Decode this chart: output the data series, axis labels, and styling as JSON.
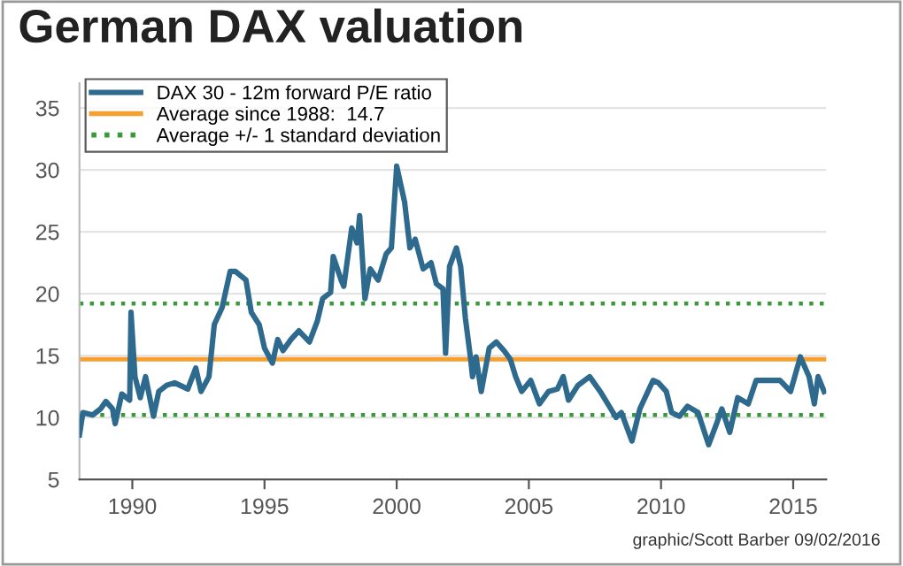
{
  "chart_data": {
    "type": "line",
    "title": "German DAX valuation",
    "x": [
      1988.0,
      1988.13,
      1988.5,
      1988.8,
      1989.0,
      1989.25,
      1989.35,
      1989.6,
      1989.9,
      1989.95,
      1990.1,
      1990.3,
      1990.5,
      1990.8,
      1991.0,
      1991.3,
      1991.6,
      1992.1,
      1992.4,
      1992.6,
      1992.9,
      1993.1,
      1993.4,
      1993.7,
      1993.9,
      1994.3,
      1994.5,
      1994.8,
      1995.0,
      1995.3,
      1995.5,
      1995.7,
      1996.0,
      1996.3,
      1996.7,
      1997.0,
      1997.2,
      1997.5,
      1997.6,
      1997.9,
      1998.0,
      1998.3,
      1998.5,
      1998.6,
      1998.8,
      1999.0,
      1999.3,
      1999.6,
      1999.8,
      2000.0,
      2000.3,
      2000.5,
      2000.7,
      2001.0,
      2001.3,
      2001.5,
      2001.75,
      2001.85,
      2002.0,
      2002.26,
      2002.42,
      2002.6,
      2002.8,
      2002.87,
      2003.0,
      2003.2,
      2003.5,
      2003.77,
      2004.06,
      2004.3,
      2004.5,
      2004.73,
      2005.07,
      2005.4,
      2005.74,
      2006.08,
      2006.3,
      2006.5,
      2006.86,
      2007.3,
      2007.7,
      2008.1,
      2008.3,
      2008.5,
      2008.9,
      2009.2,
      2009.7,
      2009.9,
      2010.2,
      2010.4,
      2010.7,
      2011.0,
      2011.4,
      2011.8,
      2012.1,
      2012.3,
      2012.6,
      2012.9,
      2013.3,
      2013.6,
      2014.0,
      2014.5,
      2014.9,
      2015.27,
      2015.6,
      2015.8,
      2015.94,
      2016.17
    ],
    "series": [
      {
        "name": "DAX 30 - 12m forward P/E ratio",
        "color": "#2e6a8e",
        "values": [
          8.6,
          10.4,
          10.2,
          10.7,
          11.3,
          10.7,
          9.5,
          11.9,
          11.4,
          18.5,
          13.3,
          11.6,
          13.3,
          10.1,
          12.1,
          12.6,
          12.8,
          12.3,
          14.0,
          12.1,
          13.3,
          17.5,
          18.9,
          21.8,
          21.8,
          21.1,
          18.5,
          17.5,
          15.6,
          14.4,
          16.3,
          15.4,
          16.3,
          17.0,
          16.1,
          17.8,
          19.6,
          20.1,
          23.0,
          21.1,
          20.6,
          25.3,
          24.1,
          26.3,
          19.6,
          22.0,
          21.1,
          23.2,
          23.7,
          30.3,
          27.4,
          23.7,
          24.4,
          22.0,
          22.5,
          20.8,
          20.4,
          15.2,
          22.2,
          23.7,
          22.2,
          18.0,
          14.7,
          13.3,
          14.9,
          12.1,
          15.6,
          16.1,
          15.4,
          14.7,
          13.3,
          12.1,
          13.0,
          11.1,
          12.1,
          12.3,
          13.3,
          11.4,
          12.6,
          13.3,
          12.1,
          10.7,
          10.0,
          10.4,
          8.1,
          10.7,
          13.0,
          12.8,
          12.1,
          10.4,
          10.1,
          10.9,
          10.4,
          7.8,
          9.5,
          10.7,
          8.8,
          11.6,
          11.1,
          13.0,
          13.0,
          13.0,
          12.1,
          14.9,
          13.3,
          11.1,
          13.3,
          12.1
        ]
      }
    ],
    "ref_lines": [
      {
        "axis": "y",
        "value": 14.7,
        "label": "Average since 1988:  14.7",
        "color": "#f5a030",
        "line_style": "solid"
      },
      {
        "axis": "y",
        "value": 19.2,
        "label": "Average +/- 1 standard deviation",
        "color": "#3a9a3a",
        "line_style": "dotted"
      },
      {
        "axis": "y",
        "value": 10.2,
        "label": null,
        "color": "#3a9a3a",
        "line_style": "dotted"
      }
    ],
    "xlim": [
      1988,
      2016.25
    ],
    "xticks": [
      1990,
      1995,
      2000,
      2005,
      2010,
      2015
    ],
    "ylim": [
      5,
      37
    ],
    "yticks": [
      5,
      10,
      15,
      20,
      25,
      30,
      35
    ],
    "grid": "y",
    "legend": "top left",
    "marker": "none",
    "line_style": "solid",
    "annotations": [
      "graphic/Scott Barber 09/02/2016"
    ]
  }
}
